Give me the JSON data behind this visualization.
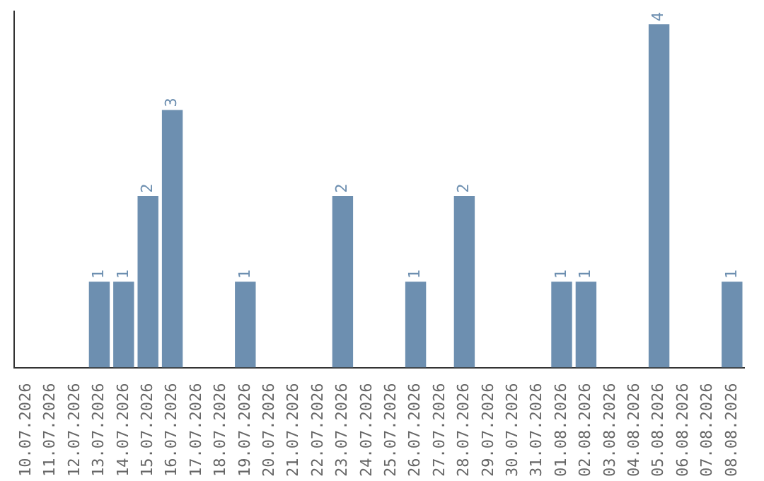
{
  "chart_data": {
    "type": "bar",
    "categories": [
      "10.07.2026",
      "11.07.2026",
      "12.07.2026",
      "13.07.2026",
      "14.07.2026",
      "15.07.2026",
      "16.07.2026",
      "17.07.2026",
      "18.07.2026",
      "19.07.2026",
      "20.07.2026",
      "21.07.2026",
      "22.07.2026",
      "23.07.2026",
      "24.07.2026",
      "25.07.2026",
      "26.07.2026",
      "27.07.2026",
      "28.07.2026",
      "29.07.2026",
      "30.07.2026",
      "31.07.2026",
      "01.08.2026",
      "02.08.2026",
      "03.08.2026",
      "04.08.2026",
      "05.08.2026",
      "06.08.2026",
      "07.08.2026",
      "08.08.2026"
    ],
    "values": [
      0,
      0,
      0,
      1,
      1,
      2,
      3,
      0,
      0,
      1,
      0,
      0,
      0,
      2,
      0,
      0,
      1,
      0,
      2,
      0,
      0,
      0,
      1,
      1,
      0,
      0,
      4,
      0,
      0,
      1
    ],
    "value_labels": [
      null,
      null,
      null,
      "1",
      "1",
      "2",
      "3",
      null,
      null,
      "1",
      null,
      null,
      null,
      "2",
      null,
      null,
      "1",
      null,
      "2",
      null,
      null,
      null,
      "1",
      "1",
      null,
      null,
      "4",
      null,
      null,
      "1"
    ],
    "color": "#6d8fb0",
    "ylim": [
      0,
      4.15
    ],
    "tick_labels": "x",
    "grid": false,
    "legend": false
  }
}
